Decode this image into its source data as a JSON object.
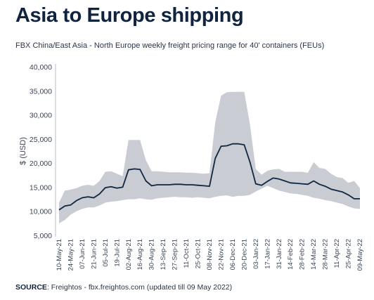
{
  "header": {
    "title": "Asia to Europe shipping",
    "subtitle": "FBX China/East Asia - North Europe weekly freight pricing range for 40' containers (FEUs)"
  },
  "footer": {
    "source_key": "SOURCE",
    "source_text": ": Freightos - fbx.freightos.com (updated till 09 May 2022)"
  },
  "colors": {
    "band": "#c9cdd3",
    "line": "#0f2540",
    "axis": "#b8bdc4",
    "title": "#10233f"
  },
  "chart_data": {
    "type": "area",
    "ylabel": "$ (USD)",
    "xlabel": "",
    "ylim": [
      5000,
      40000
    ],
    "yticks": [
      "5,000",
      "10,000",
      "15,000",
      "20,000",
      "25,000",
      "30,000",
      "35,000",
      "40,000"
    ],
    "grid": false,
    "x_tick_labels": [
      "10-May-21",
      "24-May-21",
      "07-Jun-21",
      "21-Jun-21",
      "05-Jul-21",
      "19-Jul-21",
      "02-Aug-21",
      "16-Aug-21",
      "30-Aug-21",
      "13-Sep-21",
      "27-Sep-21",
      "11-Oct-21",
      "25-Oct-21",
      "08-Nov-21",
      "22-Nov-21",
      "06-Dec-21",
      "20-Dec-21",
      "03-Jan-22",
      "17-Jan-22",
      "31-Jan-22",
      "14-Feb-22",
      "28-Feb-22",
      "14-Mar-22",
      "28-Mar-22",
      "11-Apr-22",
      "25-Apr-22",
      "09-May-22"
    ],
    "x": [
      "10-May-21",
      "17-May-21",
      "24-May-21",
      "31-May-21",
      "07-Jun-21",
      "14-Jun-21",
      "21-Jun-21",
      "28-Jun-21",
      "05-Jul-21",
      "12-Jul-21",
      "19-Jul-21",
      "26-Jul-21",
      "02-Aug-21",
      "09-Aug-21",
      "16-Aug-21",
      "23-Aug-21",
      "30-Aug-21",
      "06-Sep-21",
      "13-Sep-21",
      "20-Sep-21",
      "27-Sep-21",
      "04-Oct-21",
      "11-Oct-21",
      "18-Oct-21",
      "25-Oct-21",
      "01-Nov-21",
      "08-Nov-21",
      "15-Nov-21",
      "22-Nov-21",
      "29-Nov-21",
      "06-Dec-21",
      "13-Dec-21",
      "20-Dec-21",
      "27-Dec-21",
      "03-Jan-22",
      "10-Jan-22",
      "17-Jan-22",
      "24-Jan-22",
      "31-Jan-22",
      "07-Feb-22",
      "14-Feb-22",
      "21-Feb-22",
      "28-Feb-22",
      "07-Mar-22",
      "14-Mar-22",
      "21-Mar-22",
      "28-Mar-22",
      "04-Apr-22",
      "11-Apr-22",
      "18-Apr-22",
      "25-Apr-22",
      "02-May-22",
      "09-May-22"
    ],
    "series": [
      {
        "role": "median",
        "values": [
          10300,
          11100,
          11300,
          12200,
          12800,
          13000,
          12800,
          13600,
          14900,
          15100,
          14800,
          15000,
          18600,
          18800,
          18700,
          16300,
          15300,
          15500,
          15500,
          15500,
          15600,
          15600,
          15500,
          15500,
          15400,
          15300,
          15200,
          21000,
          23500,
          23600,
          24000,
          24000,
          23800,
          20200,
          15700,
          15400,
          16200,
          16900,
          16700,
          16300,
          15900,
          15800,
          15700,
          15600,
          16300,
          15600,
          15200,
          14600,
          14300,
          14000,
          13400,
          12600,
          12600
        ]
      },
      {
        "role": "low",
        "values": [
          7500,
          8200,
          9300,
          10000,
          10500,
          10800,
          10800,
          11200,
          11800,
          12000,
          12100,
          12300,
          12500,
          12500,
          12700,
          12500,
          12400,
          12700,
          12800,
          12900,
          13000,
          12900,
          12900,
          12800,
          12900,
          12800,
          12700,
          13000,
          13200,
          13300,
          13000,
          13200,
          13200,
          13400,
          14100,
          14700,
          15300,
          14800,
          14300,
          14000,
          13700,
          13600,
          13400,
          13200,
          12800,
          12600,
          12300,
          12100,
          11800,
          11500,
          11000,
          10600,
          10500
        ]
      },
      {
        "role": "high",
        "values": [
          11800,
          14300,
          14500,
          14800,
          15300,
          15500,
          15300,
          16300,
          18200,
          18300,
          17800,
          17300,
          24800,
          24800,
          24800,
          20600,
          18300,
          18300,
          18200,
          18100,
          18100,
          18100,
          18000,
          18000,
          17900,
          17800,
          17900,
          28500,
          34000,
          34700,
          34800,
          34800,
          34800,
          28000,
          18800,
          17600,
          18400,
          18700,
          18800,
          18200,
          18200,
          18200,
          18200,
          18000,
          20200,
          19000,
          18800,
          17800,
          17100,
          16900,
          15900,
          16300,
          14800
        ]
      }
    ]
  }
}
